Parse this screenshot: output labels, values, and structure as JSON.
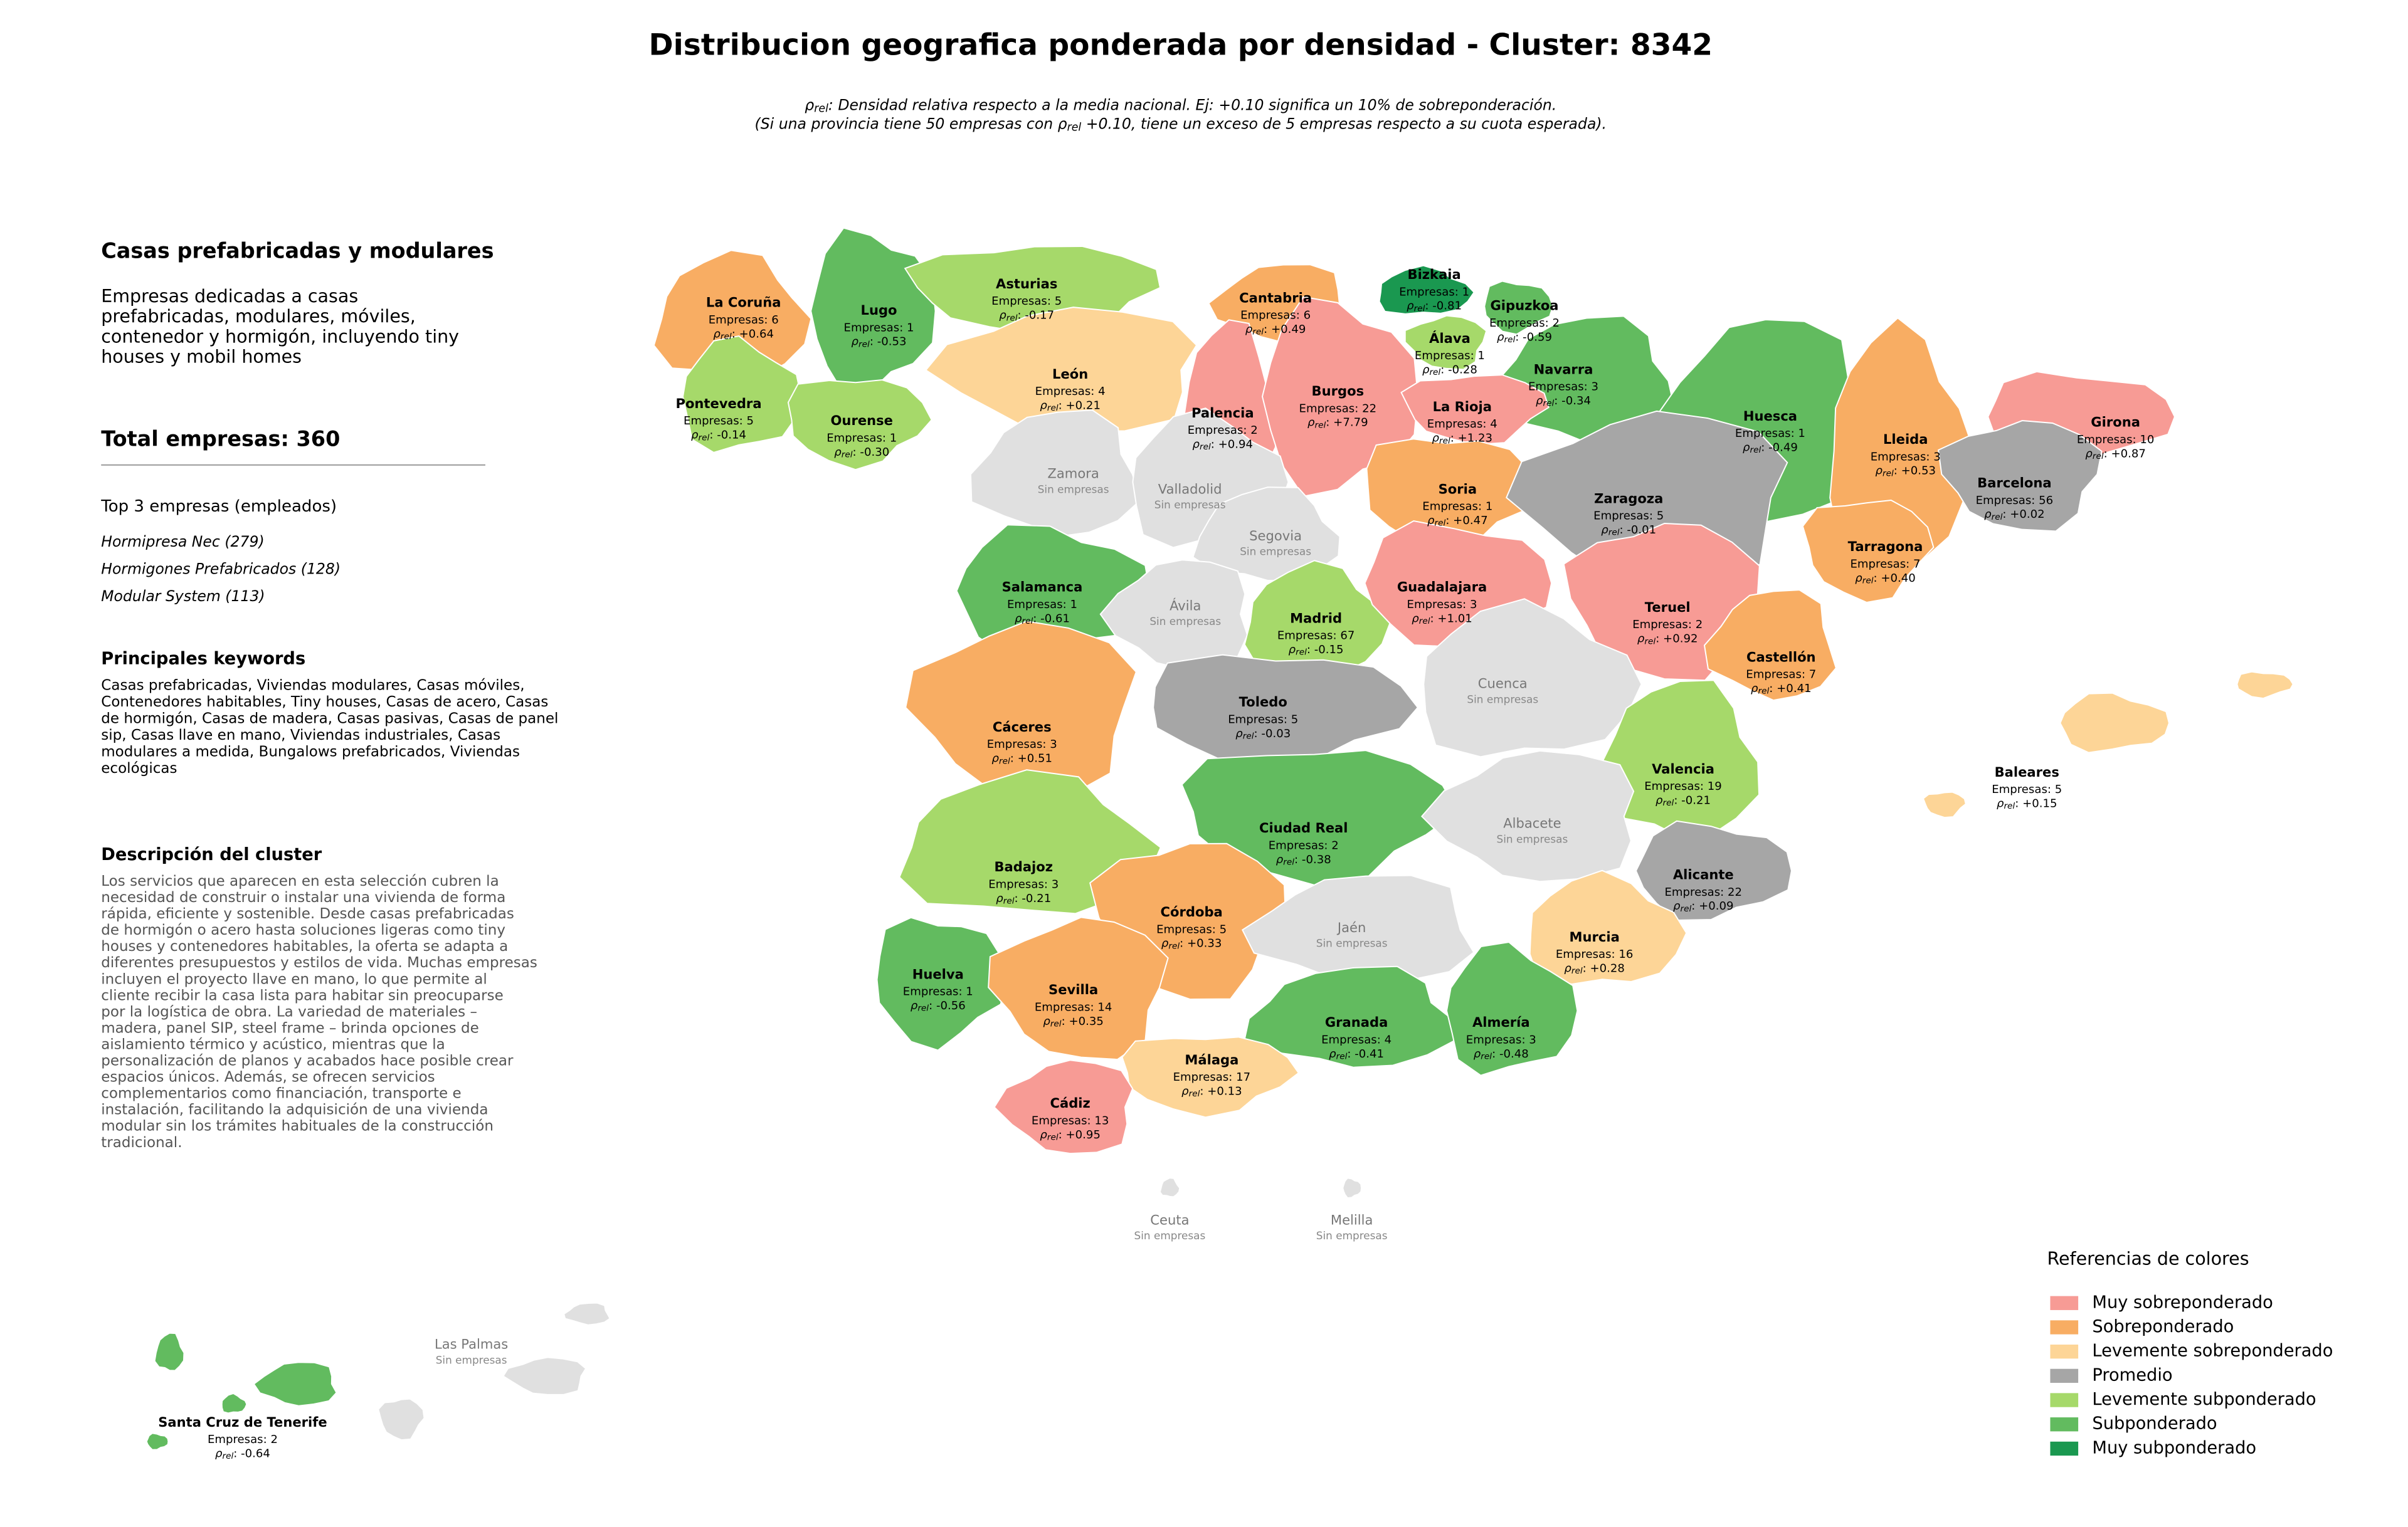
{
  "title": "Distribucion geografica ponderada por densidad - Cluster: 8342",
  "rho_symbol": "ρ",
  "rho_subscript": "rel",
  "subtitle": {
    "line1": ": Densidad relativa respecto a la media nacional. Ej: +0.10 significa un 10% de sobreponderación.",
    "line2_before": "(Si una provincia tiene 50 empresas con ",
    "line2_after": " +0.10, tiene un exceso de 5 empresas respecto a su cuota esperada)."
  },
  "panel": {
    "heading": "Casas prefabricadas y modulares",
    "intro": [
      "Empresas dedicadas a casas",
      "prefabricadas, modulares, móviles,",
      "contenedor y hormigón, incluyendo tiny",
      "houses y mobil homes"
    ],
    "total": "Total empresas: 360",
    "top_heading": "Top 3 empresas (empleados)",
    "top": [
      "Hormipresa Nec (279)",
      "Hormigones Prefabricados (128)",
      "Modular System (113)"
    ],
    "keywords_heading": "Principales keywords",
    "keywords": [
      "Casas prefabricadas, Viviendas modulares, Casas móviles,",
      "Contenedores habitables, Tiny houses, Casas de acero, Casas",
      "de hormigón, Casas de madera, Casas pasivas, Casas de panel",
      "sip, Casas llave en mano, Viviendas industriales, Casas",
      "modulares a medida, Bungalows prefabricados, Viviendas",
      "ecológicas"
    ],
    "description_heading": "Descripción del cluster",
    "description": [
      "Los servicios que aparecen en esta selección cubren la",
      "necesidad de construir o instalar una vivienda de forma",
      "rápida, eficiente y sostenible. Desde casas prefabricadas",
      "de hormigón o acero hasta soluciones ligeras como tiny",
      "houses y contenedores habitables, la oferta se adapta a",
      "diferentes presupuestos y estilos de vida. Muchas empresas",
      "incluyen el proyecto llave en mano, lo que permite al",
      "cliente recibir la casa lista para habitar sin preocuparse",
      "por la logística de obra. La variedad de materiales –",
      "madera, panel SIP, steel frame – brinda opciones de",
      "aislamiento térmico y acústico, mientras que la",
      "personalización de planos y acabados hace posible crear",
      "espacios únicos. Además, se ofrecen servicios",
      "complementarios como financiación, transporte e",
      "instalación, facilitando la adquisición de una vivienda",
      "modular sin los trámites habituales de la construcción",
      "tradicional."
    ]
  },
  "legend": {
    "title": "Referencias de colores",
    "no_data_color": "#e0e0e0",
    "categories": [
      {
        "name": "Muy sobreponderado",
        "color": "#f79b95"
      },
      {
        "name": "Sobreponderado",
        "color": "#f8ad63"
      },
      {
        "name": "Levemente sobreponderado",
        "color": "#fdd597"
      },
      {
        "name": "Promedio",
        "color": "#a6a6a6"
      },
      {
        "name": "Levemente subponderado",
        "color": "#a6d96a"
      },
      {
        "name": "Subponderado",
        "color": "#62bb5f"
      },
      {
        "name": "Muy subponderado",
        "color": "#1a9850"
      }
    ]
  },
  "provinces": [
    {
      "name": "La Coruña",
      "empresas": "Empresas: 6",
      "rho": ": +0.64",
      "category": 1
    },
    {
      "name": "Lugo",
      "empresas": "Empresas: 1",
      "rho": ": -0.53",
      "category": 5
    },
    {
      "name": "Asturias",
      "empresas": "Empresas: 5",
      "rho": ": -0.17",
      "category": 4
    },
    {
      "name": "Cantabria",
      "empresas": "Empresas: 6",
      "rho": ": +0.49",
      "category": 1
    },
    {
      "name": "Bizkaia",
      "empresas": "Empresas: 1",
      "rho": ": -0.81",
      "category": 6
    },
    {
      "name": "Gipuzkoa",
      "empresas": "Empresas: 2",
      "rho": ": -0.59",
      "category": 5
    },
    {
      "name": "Álava",
      "empresas": "Empresas: 1",
      "rho": ": -0.28",
      "category": 4
    },
    {
      "name": "Navarra",
      "empresas": "Empresas: 3",
      "rho": ": -0.34",
      "category": 5
    },
    {
      "name": "Pontevedra",
      "empresas": "Empresas: 5",
      "rho": ": -0.14",
      "category": 4
    },
    {
      "name": "Ourense",
      "empresas": "Empresas: 1",
      "rho": ": -0.30",
      "category": 4
    },
    {
      "name": "León",
      "empresas": "Empresas: 4",
      "rho": ": +0.21",
      "category": 2
    },
    {
      "name": "Palencia",
      "empresas": "Empresas: 2",
      "rho": ": +0.94",
      "category": 0
    },
    {
      "name": "Burgos",
      "empresas": "Empresas: 22",
      "rho": ": +7.79",
      "category": 0
    },
    {
      "name": "La Rioja",
      "empresas": "Empresas: 4",
      "rho": ": +1.23",
      "category": 0
    },
    {
      "name": "Huesca",
      "empresas": "Empresas: 1",
      "rho": ": -0.49",
      "category": 5
    },
    {
      "name": "Lleida",
      "empresas": "Empresas: 3",
      "rho": ": +0.53",
      "category": 1
    },
    {
      "name": "Girona",
      "empresas": "Empresas: 10",
      "rho": ": +0.87",
      "category": 0
    },
    {
      "name": "Barcelona",
      "empresas": "Empresas: 56",
      "rho": ": +0.02",
      "category": 3
    },
    {
      "name": "Zamora",
      "empresas": "Sin empresas"
    },
    {
      "name": "Valladolid",
      "empresas": "Sin empresas"
    },
    {
      "name": "Soria",
      "empresas": "Empresas: 1",
      "rho": ": +0.47",
      "category": 1
    },
    {
      "name": "Zaragoza",
      "empresas": "Empresas: 5",
      "rho": ": -0.01",
      "category": 3
    },
    {
      "name": "Segovia",
      "empresas": "Sin empresas"
    },
    {
      "name": "Salamanca",
      "empresas": "Empresas: 1",
      "rho": ": -0.61",
      "category": 5
    },
    {
      "name": "Tarragona",
      "empresas": "Empresas: 7",
      "rho": ": +0.40",
      "category": 1
    },
    {
      "name": "Ávila",
      "empresas": "Sin empresas"
    },
    {
      "name": "Madrid",
      "empresas": "Empresas: 67",
      "rho": ": -0.15",
      "category": 4
    },
    {
      "name": "Guadalajara",
      "empresas": "Empresas: 3",
      "rho": ": +1.01",
      "category": 0
    },
    {
      "name": "Teruel",
      "empresas": "Empresas: 2",
      "rho": ": +0.92",
      "category": 0
    },
    {
      "name": "Castellón",
      "empresas": "Empresas: 7",
      "rho": ": +0.41",
      "category": 1
    },
    {
      "name": "Cuenca",
      "empresas": "Sin empresas"
    },
    {
      "name": "Toledo",
      "empresas": "Empresas: 5",
      "rho": ": -0.03",
      "category": 3
    },
    {
      "name": "Cáceres",
      "empresas": "Empresas: 3",
      "rho": ": +0.51",
      "category": 1
    },
    {
      "name": "Valencia",
      "empresas": "Empresas: 19",
      "rho": ": -0.21",
      "category": 4
    },
    {
      "name": "Baleares",
      "empresas": "Empresas: 5",
      "rho": ": +0.15",
      "category": 2
    },
    {
      "name": "Ciudad Real",
      "empresas": "Empresas: 2",
      "rho": ": -0.38",
      "category": 5
    },
    {
      "name": "Albacete",
      "empresas": "Sin empresas"
    },
    {
      "name": "Badajoz",
      "empresas": "Empresas: 3",
      "rho": ": -0.21",
      "category": 4
    },
    {
      "name": "Alicante",
      "empresas": "Empresas: 22",
      "rho": ": +0.09",
      "category": 3
    },
    {
      "name": "Córdoba",
      "empresas": "Empresas: 5",
      "rho": ": +0.33",
      "category": 1
    },
    {
      "name": "Jaén",
      "empresas": "Sin empresas"
    },
    {
      "name": "Murcia",
      "empresas": "Empresas: 16",
      "rho": ": +0.28",
      "category": 2
    },
    {
      "name": "Huelva",
      "empresas": "Empresas: 1",
      "rho": ": -0.56",
      "category": 5
    },
    {
      "name": "Sevilla",
      "empresas": "Empresas: 14",
      "rho": ": +0.35",
      "category": 1
    },
    {
      "name": "Granada",
      "empresas": "Empresas: 4",
      "rho": ": -0.41",
      "category": 5
    },
    {
      "name": "Almería",
      "empresas": "Empresas: 3",
      "rho": ": -0.48",
      "category": 5
    },
    {
      "name": "Málaga",
      "empresas": "Empresas: 17",
      "rho": ": +0.13",
      "category": 2
    },
    {
      "name": "Cádiz",
      "empresas": "Empresas: 13",
      "rho": ": +0.95",
      "category": 0
    },
    {
      "name": "Ceuta",
      "empresas": "Sin empresas"
    },
    {
      "name": "Melilla",
      "empresas": "Sin empresas"
    },
    {
      "name": "Las Palmas",
      "empresas": "Sin empresas"
    },
    {
      "name": "Santa Cruz de Tenerife",
      "empresas": "Empresas: 2",
      "rho": ": -0.64",
      "category": 5
    }
  ]
}
